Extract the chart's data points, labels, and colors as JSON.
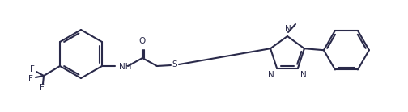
{
  "bg_color": "#ffffff",
  "line_color": "#2a2a4a",
  "lw": 1.5,
  "fs": 7.5,
  "figsize": [
    5.04,
    1.39
  ],
  "dpi": 100,
  "xlim": [
    0,
    504
  ],
  "ylim": [
    0,
    139
  ]
}
